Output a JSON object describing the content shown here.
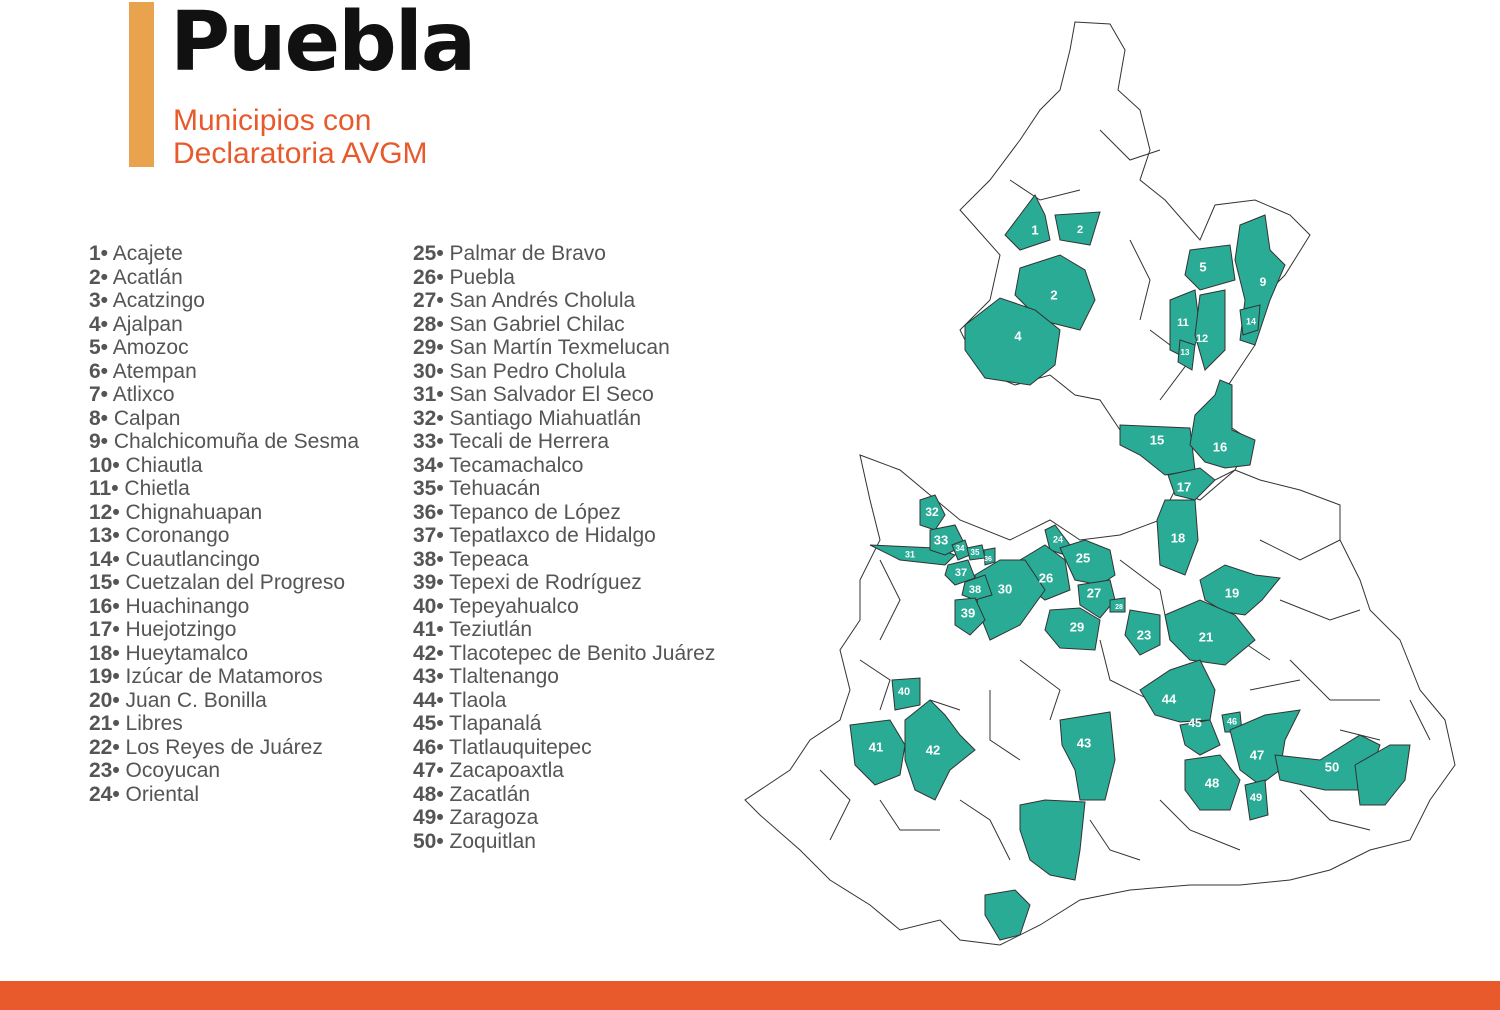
{
  "header": {
    "title": "Puebla",
    "subtitle_line1": "Municipios con",
    "subtitle_line2": "Declaratoria AVGM"
  },
  "colors": {
    "accent_bar": "#e9a24e",
    "subtitle": "#e8592c",
    "declared_municipality": "#2aab96",
    "bottom_bar": "#e8592c"
  },
  "legend_column_1": [
    {
      "num": "1•",
      "name": "Acajete"
    },
    {
      "num": "2•",
      "name": "Acatlán"
    },
    {
      "num": "3•",
      "name": "Acatzingo"
    },
    {
      "num": "4•",
      "name": "Ajalpan"
    },
    {
      "num": "5•",
      "name": "Amozoc"
    },
    {
      "num": "6•",
      "name": "Atempan"
    },
    {
      "num": "7•",
      "name": "Atlixco"
    },
    {
      "num": "8•",
      "name": "Calpan"
    },
    {
      "num": "9•",
      "name": "Chalchicomuña de Sesma"
    },
    {
      "num": "10•",
      "name": "Chiautla"
    },
    {
      "num": "11•",
      "name": "Chietla"
    },
    {
      "num": "12•",
      "name": "Chignahuapan"
    },
    {
      "num": "13•",
      "name": "Coronango"
    },
    {
      "num": "14•",
      "name": "Cuautlancingo"
    },
    {
      "num": "15•",
      "name": "Cuetzalan del Progreso"
    },
    {
      "num": "16•",
      "name": "Huachinango"
    },
    {
      "num": "17•",
      "name": "Huejotzingo"
    },
    {
      "num": "18•",
      "name": "Hueytamalco"
    },
    {
      "num": "19•",
      "name": "Izúcar de Matamoros"
    },
    {
      "num": "20•",
      "name": "Juan C. Bonilla"
    },
    {
      "num": "21•",
      "name": "Libres"
    },
    {
      "num": "22•",
      "name": "Los Reyes de Juárez"
    },
    {
      "num": "23•",
      "name": "Ocoyucan"
    },
    {
      "num": "24•",
      "name": "Oriental"
    }
  ],
  "legend_column_2": [
    {
      "num": "25•",
      "name": "Palmar de Bravo"
    },
    {
      "num": "26•",
      "name": "Puebla"
    },
    {
      "num": "27•",
      "name": "San Andrés Cholula"
    },
    {
      "num": "28•",
      "name": "San Gabriel Chilac"
    },
    {
      "num": "29•",
      "name": "San Martín Texmelucan"
    },
    {
      "num": "30•",
      "name": "San Pedro Cholula"
    },
    {
      "num": "31•",
      "name": "San Salvador El Seco"
    },
    {
      "num": "32•",
      "name": "Santiago Miahuatlán"
    },
    {
      "num": "33•",
      "name": "Tecali de Herrera"
    },
    {
      "num": "34•",
      "name": "Tecamachalco"
    },
    {
      "num": "35•",
      "name": "Tehuacán"
    },
    {
      "num": "36•",
      "name": "Tepanco de López"
    },
    {
      "num": "37•",
      "name": "Tepatlaxco de Hidalgo"
    },
    {
      "num": "38•",
      "name": "Tepeaca"
    },
    {
      "num": "39•",
      "name": "Tepexi de Rodríguez"
    },
    {
      "num": "40•",
      "name": "Tepeyahualco"
    },
    {
      "num": "41•",
      "name": "Teziutlán"
    },
    {
      "num": "42•",
      "name": "Tlacotepec de Benito Juárez"
    },
    {
      "num": "43•",
      "name": "Tlaltenango"
    },
    {
      "num": "44•",
      "name": "Tlaola"
    },
    {
      "num": "45•",
      "name": "Tlapanalá"
    },
    {
      "num": "46•",
      "name": "Tlatlauquitepec"
    },
    {
      "num": "47•",
      "name": "Zacapoaxtla"
    },
    {
      "num": "48•",
      "name": "Zacatlán"
    },
    {
      "num": "49•",
      "name": " Zaragoza"
    },
    {
      "num": "50•",
      "name": " Zoquitlan"
    }
  ],
  "map_labels": [
    "1",
    "2",
    "2",
    "4",
    "5",
    "9",
    "11",
    "12",
    "13",
    "14",
    "15",
    "16",
    "17",
    "18",
    "19",
    "21",
    "23",
    "24",
    "25",
    "26",
    "27",
    "28",
    "29",
    "30",
    "31",
    "32",
    "33",
    "34",
    "35",
    "36",
    "37",
    "38",
    "39",
    "40",
    "41",
    "42",
    "43",
    "44",
    "45",
    "46",
    "47",
    "48",
    "49",
    "50"
  ]
}
